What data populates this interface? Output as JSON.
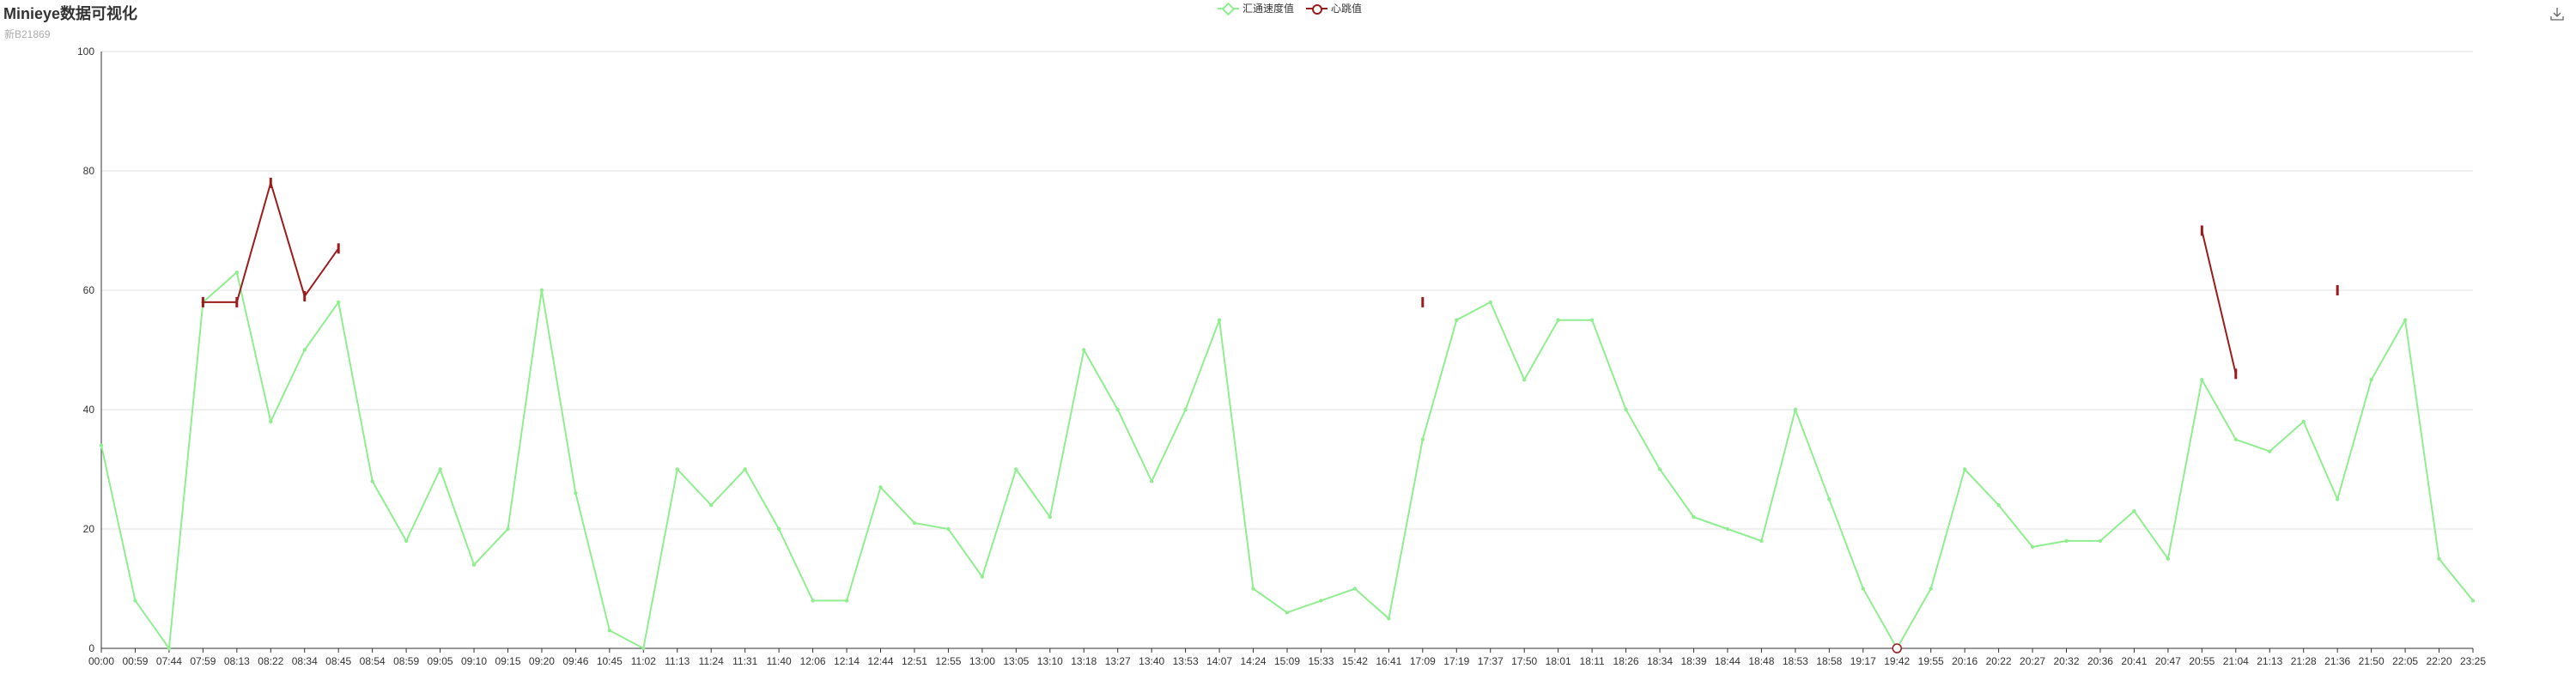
{
  "chart_data": {
    "type": "line",
    "title": "Minieye数据可视化",
    "subtitle": "新B21869",
    "ylim": [
      0,
      100
    ],
    "yticks": [
      0,
      20,
      40,
      60,
      80,
      100
    ],
    "grid": true,
    "legend_position": "top-center",
    "categories": [
      "00:00",
      "00:59",
      "07:44",
      "07:59",
      "08:13",
      "08:22",
      "08:34",
      "08:45",
      "08:54",
      "08:59",
      "09:05",
      "09:10",
      "09:15",
      "09:20",
      "09:46",
      "10:45",
      "11:02",
      "11:13",
      "11:24",
      "11:31",
      "11:40",
      "12:06",
      "12:14",
      "12:44",
      "12:51",
      "12:55",
      "13:00",
      "13:05",
      "13:10",
      "13:18",
      "13:27",
      "13:40",
      "13:53",
      "14:07",
      "14:24",
      "15:09",
      "15:33",
      "15:42",
      "16:41",
      "17:09",
      "17:19",
      "17:37",
      "17:50",
      "18:01",
      "18:11",
      "18:26",
      "18:34",
      "18:39",
      "18:44",
      "18:48",
      "18:53",
      "18:58",
      "19:17",
      "19:42",
      "19:55",
      "20:16",
      "20:22",
      "20:27",
      "20:32",
      "20:36",
      "20:41",
      "20:47",
      "20:55",
      "21:04",
      "21:13",
      "21:28",
      "21:36",
      "21:50",
      "22:05",
      "22:20",
      "23:25"
    ],
    "series": [
      {
        "name": "汇通速度值",
        "color": "#90EE90",
        "marker": "diamond",
        "values": [
          34,
          8,
          0,
          58,
          63,
          38,
          50,
          58,
          28,
          18,
          30,
          14,
          20,
          60,
          26,
          3,
          0,
          30,
          24,
          30,
          20,
          8,
          8,
          27,
          21,
          20,
          12,
          30,
          22,
          50,
          40,
          28,
          40,
          55,
          10,
          6,
          8,
          10,
          5,
          35,
          55,
          58,
          45,
          55,
          55,
          40,
          30,
          22,
          20,
          18,
          40,
          25,
          10,
          0,
          10,
          30,
          24,
          17,
          18,
          18,
          23,
          15,
          45,
          35,
          33,
          38,
          25,
          45,
          55,
          15,
          8
        ]
      },
      {
        "name": "心跳值",
        "color": "#9B1C1C",
        "marker": "circle",
        "values": [
          null,
          null,
          null,
          58,
          58,
          78,
          59,
          67,
          null,
          null,
          null,
          null,
          null,
          null,
          null,
          null,
          null,
          null,
          null,
          null,
          null,
          null,
          null,
          null,
          null,
          null,
          null,
          null,
          null,
          null,
          null,
          null,
          null,
          null,
          null,
          null,
          null,
          null,
          null,
          58,
          null,
          null,
          null,
          null,
          null,
          null,
          null,
          null,
          null,
          null,
          null,
          null,
          null,
          0,
          null,
          null,
          null,
          null,
          null,
          null,
          null,
          null,
          70,
          46,
          null,
          null,
          60,
          null,
          null,
          null,
          null
        ]
      }
    ]
  },
  "toolbox": {
    "icon": "download-icon",
    "label": "save-as-image"
  }
}
